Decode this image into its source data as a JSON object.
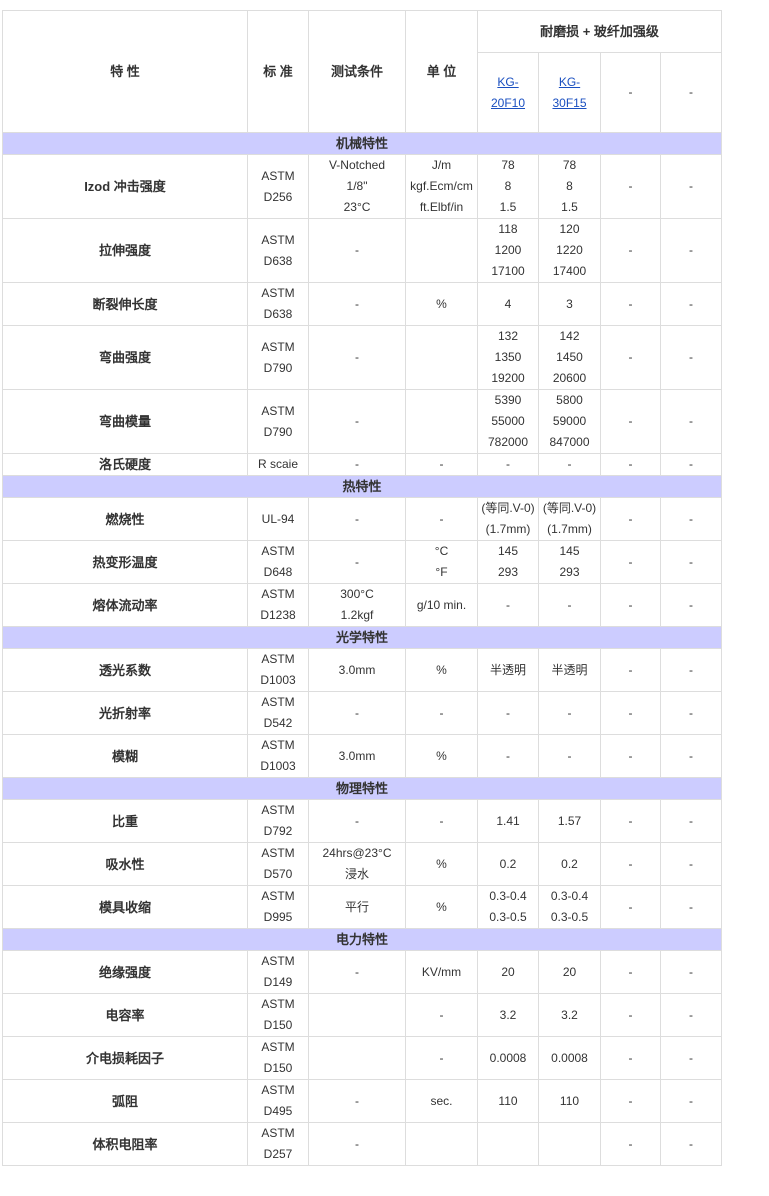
{
  "header": {
    "property": "特  性",
    "standard": "标  准",
    "test_condition": "测试条件",
    "unit": "单  位",
    "group": "耐磨损 + 玻纤加强级",
    "grades": [
      "KG-\n20F10",
      "KG-\n30F15",
      "-",
      "-"
    ]
  },
  "colors": {
    "section_bg": "#ccccff",
    "link": "#1a4fc0",
    "border": "#dddddd"
  },
  "sections": [
    {
      "title": "机械特性",
      "rows": [
        {
          "property": "Izod 冲击强度",
          "standard": "ASTM\nD256",
          "condition": "V-Notched\n1/8\"\n23°C",
          "unit": "J/m\nkgf.Ecm/cm\nft.Elbf/in",
          "values": [
            "78\n8\n1.5",
            "78\n8\n1.5",
            "-",
            "-"
          ]
        },
        {
          "property": "拉伸强度",
          "standard": "ASTM\nD638",
          "condition": "-",
          "unit": "",
          "values": [
            "118\n1200\n17100",
            "120\n1220\n17400",
            "-",
            "-"
          ]
        },
        {
          "property": "断裂伸长度",
          "standard": "ASTM\nD638",
          "condition": "-",
          "unit": "%",
          "values": [
            "4",
            "3",
            "-",
            "-"
          ]
        },
        {
          "property": "弯曲强度",
          "standard": "ASTM\nD790",
          "condition": "-",
          "unit": "",
          "values": [
            "132\n1350\n19200",
            "142\n1450\n20600",
            "-",
            "-"
          ]
        },
        {
          "property": "弯曲模量",
          "standard": "ASTM\nD790",
          "condition": "-",
          "unit": "",
          "values": [
            "5390\n55000\n782000",
            "5800\n59000\n847000",
            "-",
            "-"
          ]
        },
        {
          "property": "洛氏硬度",
          "standard": "R scaie",
          "condition": "-",
          "unit": "-",
          "values": [
            "-",
            "-",
            "-",
            "-"
          ]
        }
      ]
    },
    {
      "title": "热特性",
      "rows": [
        {
          "property": "燃烧性",
          "standard": "UL-94",
          "condition": "-",
          "unit": "-",
          "values": [
            "(等同.V-0)\n(1.7mm)",
            "(等同.V-0)\n(1.7mm)",
            "-",
            "-"
          ]
        },
        {
          "property": "热变形温度",
          "standard": "ASTM\nD648",
          "condition": "-",
          "unit": "°C\n°F",
          "values": [
            "145\n293",
            "145\n293",
            "-",
            "-"
          ]
        },
        {
          "property": "熔体流动率",
          "standard": "ASTM\nD1238",
          "condition": "300°C\n1.2kgf",
          "unit": "g/10 min.",
          "values": [
            "-",
            "-",
            "-",
            "-"
          ]
        }
      ]
    },
    {
      "title": "光学特性",
      "rows": [
        {
          "property": "透光系数",
          "standard": "ASTM\nD1003",
          "condition": "3.0mm",
          "unit": "%",
          "values": [
            "半透明",
            "半透明",
            "-",
            "-"
          ]
        },
        {
          "property": "光折射率",
          "standard": "ASTM\nD542",
          "condition": "-",
          "unit": "-",
          "values": [
            "-",
            "-",
            "-",
            "-"
          ]
        },
        {
          "property": "模糊",
          "standard": "ASTM\nD1003",
          "condition": "3.0mm",
          "unit": "%",
          "values": [
            "-",
            "-",
            "-",
            "-"
          ]
        }
      ]
    },
    {
      "title": "物理特性",
      "rows": [
        {
          "property": "比重",
          "standard": "ASTM\nD792",
          "condition": "-",
          "unit": "-",
          "values": [
            "1.41",
            "1.57",
            "-",
            "-"
          ]
        },
        {
          "property": "吸水性",
          "standard": "ASTM\nD570",
          "condition": "24hrs@23°C\n浸水",
          "unit": "%",
          "values": [
            "0.2",
            "0.2",
            "-",
            "-"
          ]
        },
        {
          "property": "模具收缩",
          "standard": "ASTM\nD995",
          "condition": "平行",
          "unit": "%",
          "values": [
            "0.3-0.4\n0.3-0.5",
            "0.3-0.4\n0.3-0.5",
            "-",
            "-"
          ]
        }
      ]
    },
    {
      "title": "电力特性",
      "rows": [
        {
          "property": "绝缘强度",
          "standard": "ASTM\nD149",
          "condition": "-",
          "unit": "KV/mm",
          "values": [
            "20",
            "20",
            "-",
            "-"
          ]
        },
        {
          "property": "电容率",
          "standard": "ASTM\nD150",
          "condition": "",
          "unit": "-",
          "values": [
            "3.2",
            "3.2",
            "-",
            "-"
          ]
        },
        {
          "property": "介电损耗因子",
          "standard": "ASTM\nD150",
          "condition": "",
          "unit": "-",
          "values": [
            "0.0008",
            "0.0008",
            "-",
            "-"
          ]
        },
        {
          "property": "弧阻",
          "standard": "ASTM\nD495",
          "condition": "-",
          "unit": "sec.",
          "values": [
            "110",
            "110",
            "-",
            "-"
          ]
        },
        {
          "property": "体积电阻率",
          "standard": "ASTM\nD257",
          "condition": "-",
          "unit": "",
          "values": [
            "",
            "",
            "-",
            "-"
          ]
        }
      ]
    }
  ]
}
